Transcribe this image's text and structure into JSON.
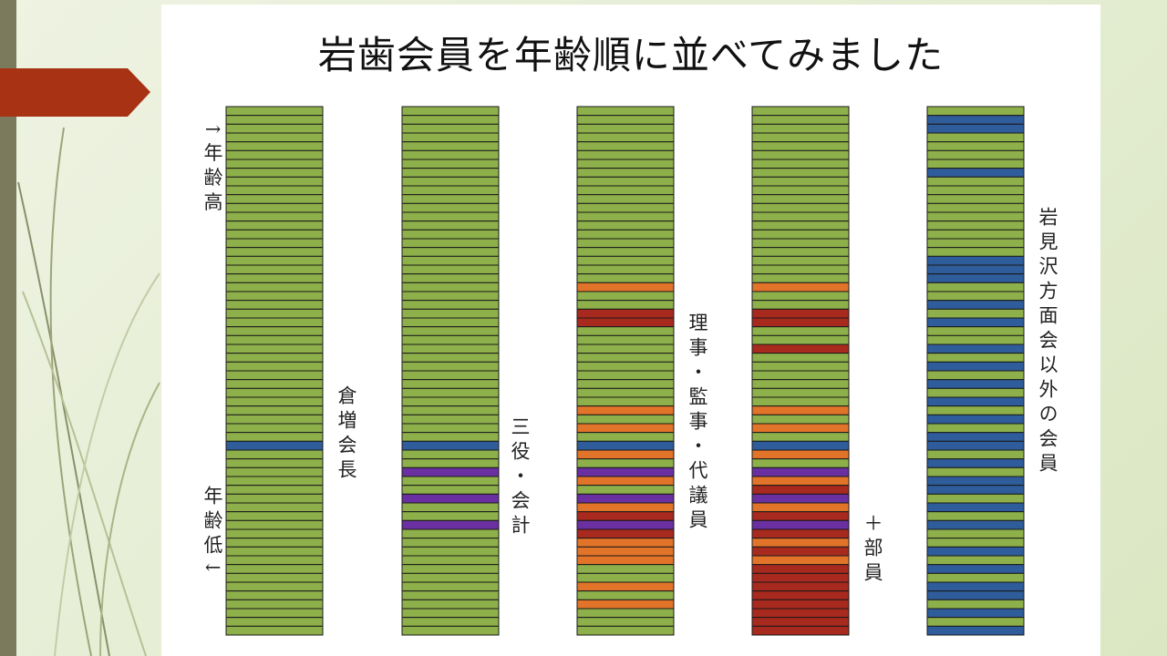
{
  "header": {
    "title": "岩歯会員を年齢順に並べてみました"
  },
  "axis_labels": {
    "top": "↑年齢高",
    "bottom": "年齢低↓"
  },
  "columns": [
    {
      "label": "倉増会長"
    },
    {
      "label": "三役・会計"
    },
    {
      "label": "理事・監事・代議員"
    },
    {
      "label": "＋部員"
    },
    {
      "label": "岩見沢方面会以外の会員"
    }
  ]
}
